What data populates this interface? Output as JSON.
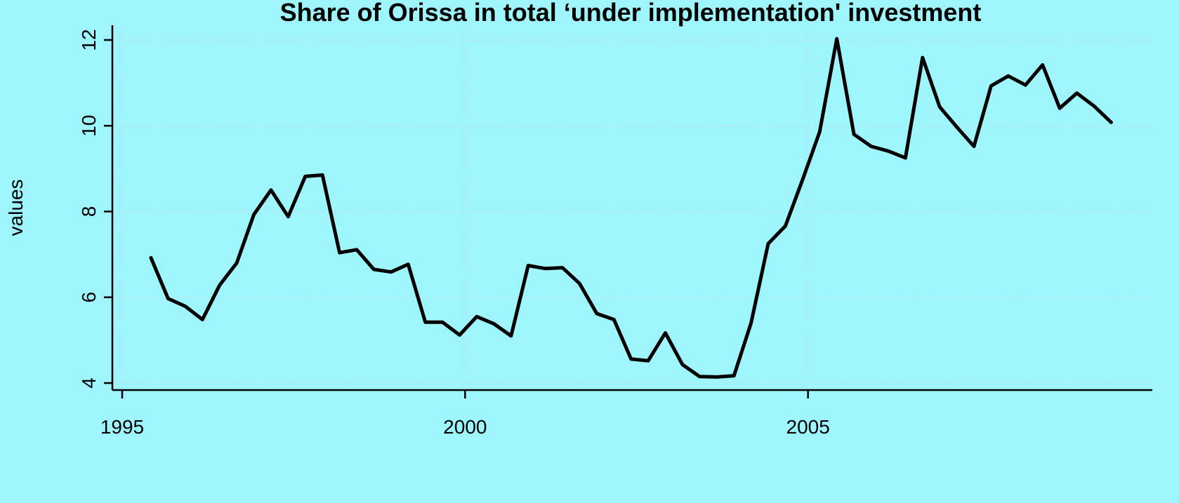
{
  "chart_data": {
    "type": "line",
    "title": "Share of Orissa in total ‘under implementation' investment",
    "xlabel": "",
    "ylabel": "values",
    "xlim": [
      1995,
      2010
    ],
    "ylim": [
      4,
      12
    ],
    "x_ticks": [
      1995,
      2000,
      2005
    ],
    "y_ticks": [
      4,
      6,
      8,
      10,
      12
    ],
    "grid": true,
    "background": "#9ef5fc",
    "line_color": "#000000",
    "series": [
      {
        "x": [
          1995.42,
          1995.67,
          1995.92,
          1996.17,
          1996.42,
          1996.67,
          1996.92,
          1997.17,
          1997.42,
          1997.67,
          1997.92,
          1998.17,
          1998.42,
          1998.67,
          1998.92,
          1999.17,
          1999.42,
          1999.67,
          1999.92,
          2000.17,
          2000.42,
          2000.67,
          2000.92,
          2001.17,
          2001.42,
          2001.67,
          2001.92,
          2002.17,
          2002.42,
          2002.67,
          2002.92,
          2003.17,
          2003.42,
          2003.67,
          2003.92,
          2004.17,
          2004.42,
          2004.67,
          2004.92,
          2005.17,
          2005.42,
          2005.67,
          2005.92,
          2006.17,
          2006.42,
          2006.67,
          2006.92,
          2007.17,
          2007.42,
          2007.67,
          2007.92,
          2008.17,
          2008.42,
          2008.67,
          2008.92,
          2009.17,
          2009.42
        ],
        "values": [
          6.92,
          5.97,
          5.79,
          5.48,
          6.28,
          6.8,
          7.93,
          8.5,
          7.88,
          8.82,
          8.85,
          7.04,
          7.11,
          6.65,
          6.59,
          6.77,
          5.42,
          5.42,
          5.12,
          5.55,
          5.38,
          5.1,
          6.74,
          6.67,
          6.69,
          6.32,
          5.62,
          5.48,
          4.56,
          4.52,
          5.17,
          4.43,
          4.15,
          4.14,
          4.17,
          5.4,
          7.25,
          7.66,
          8.74,
          9.86,
          12.03,
          9.8,
          9.52,
          9.41,
          9.25,
          11.59,
          10.44,
          9.97,
          9.52,
          10.93,
          11.16,
          10.95,
          11.42,
          10.41,
          10.76,
          10.46,
          10.08
        ]
      }
    ]
  }
}
